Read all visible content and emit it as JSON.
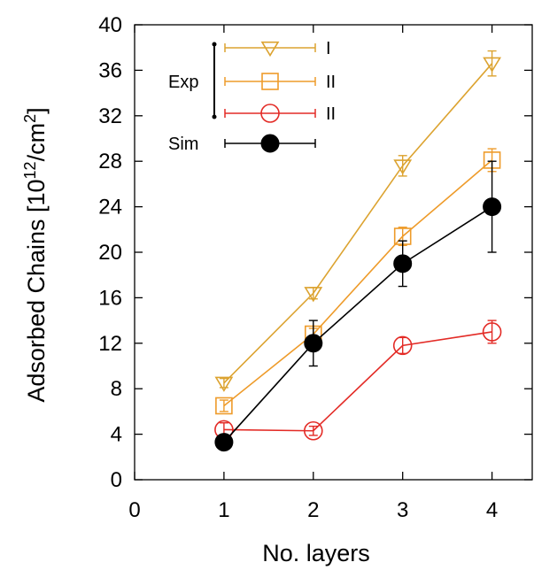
{
  "chart_data": {
    "type": "line",
    "xlabel": "No. layers",
    "ylabel": {
      "prefix": "Adsorbed Chains [10",
      "sup1": "12",
      "mid": "/cm",
      "sup2": "2",
      "suffix": "]"
    },
    "xlim": [
      0,
      4.45
    ],
    "ylim": [
      0,
      40
    ],
    "x_ticks": [
      "0",
      "1",
      "2",
      "3",
      "4"
    ],
    "y_ticks": [
      "0",
      "4",
      "8",
      "12",
      "16",
      "20",
      "24",
      "28",
      "32",
      "36",
      "40"
    ],
    "x": [
      1,
      2,
      3,
      4
    ],
    "legend_groups": [
      "Exp",
      "Sim"
    ],
    "legend_position": "top-left",
    "grid": false,
    "series": [
      {
        "name": "I",
        "group": "Exp",
        "marker": "triangle-down",
        "color": "#dca330",
        "values": [
          8.5,
          16.4,
          27.6,
          36.6
        ],
        "errors": [
          0.4,
          0.5,
          0.9,
          1.1
        ]
      },
      {
        "name": "II",
        "group": "Exp",
        "marker": "square",
        "color": "#ee9b2a",
        "values": [
          6.5,
          12.8,
          21.4,
          28.1
        ],
        "errors": [
          0.5,
          0.5,
          0.8,
          1.0
        ]
      },
      {
        "name": "II",
        "group": "Exp",
        "marker": "circle-open",
        "color": "#e32b26",
        "values": [
          4.4,
          4.3,
          11.8,
          13.0
        ],
        "errors": [
          0.6,
          0.4,
          0.7,
          1.0
        ]
      },
      {
        "name": "",
        "legend_label": "Sim",
        "group": "Sim",
        "marker": "circle-filled",
        "color": "#000000",
        "values": [
          3.3,
          12.0,
          19.0,
          24.0
        ],
        "errors": [
          0.4,
          2.0,
          2.0,
          4.0
        ]
      }
    ]
  }
}
